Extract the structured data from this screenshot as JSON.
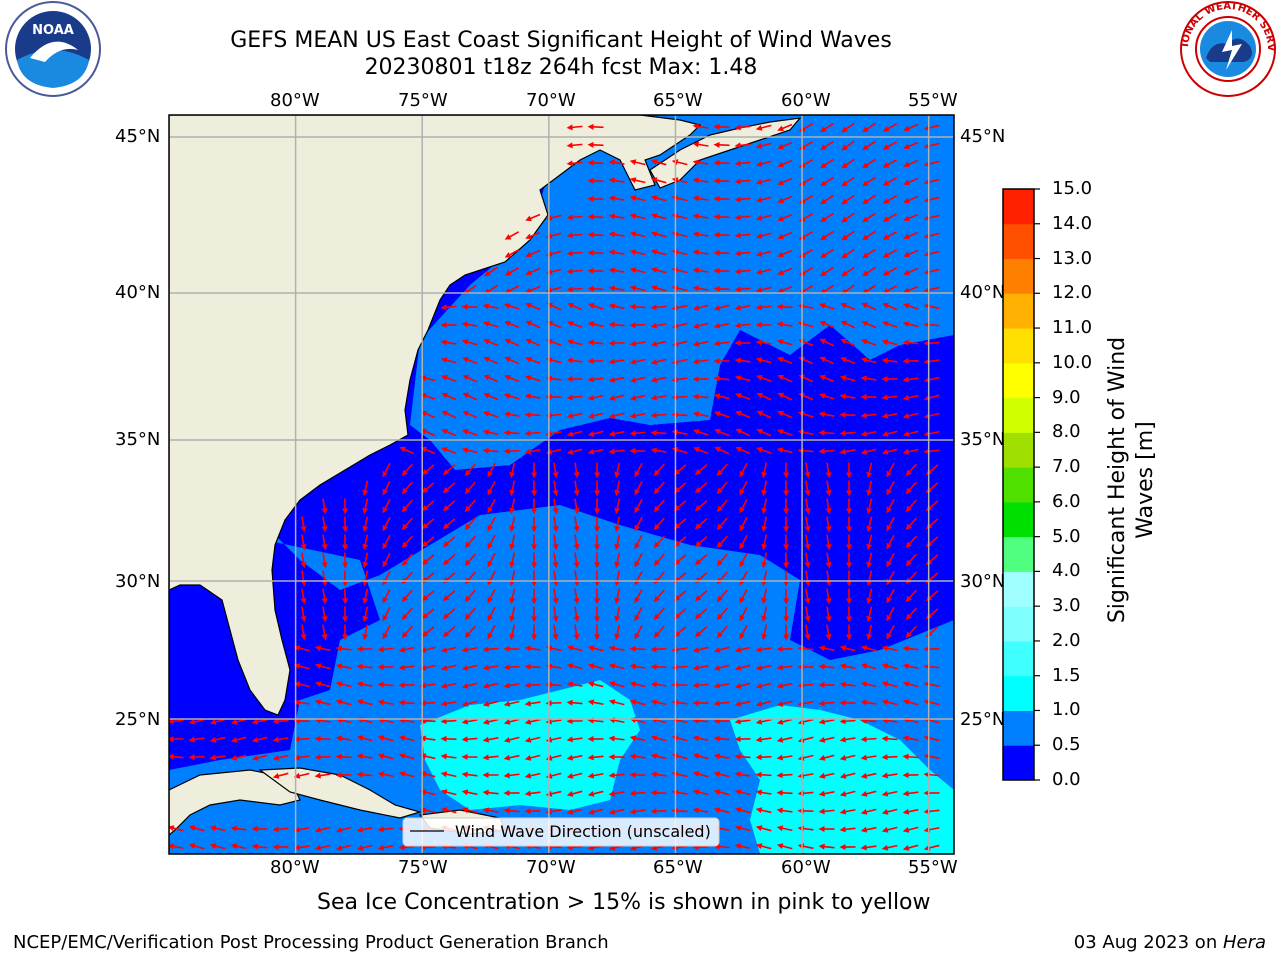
{
  "header": {
    "title_line1": "GEFS MEAN US East Coast Significant Height of Wind Waves",
    "title_line2": "20230801 t18z 264h fcst   Max: 1.48"
  },
  "logos": {
    "left": {
      "icon": "noaa-logo",
      "text": "NOAA"
    },
    "right": {
      "icon": "nws-logo",
      "text": "NATIONAL WEATHER SERVICE"
    }
  },
  "map": {
    "lon_labels": [
      "80°W",
      "75°W",
      "70°W",
      "65°W",
      "60°W",
      "55°W"
    ],
    "lat_labels": [
      "45°N",
      "40°N",
      "35°N",
      "30°N",
      "25°N"
    ],
    "lon_range": [
      -85,
      -54
    ],
    "lat_range": [
      20.5,
      46
    ],
    "legend_label": "Wind Wave Direction (unscaled)",
    "arrow_color": "#ff0000",
    "land_color": "#efeedc",
    "grid_color": "#b0b0b0"
  },
  "colorbar": {
    "label": "Significant Height of Wind Waves [m]",
    "label_line1": "Significant Height of Wind",
    "label_line2": "Waves [m]",
    "ticks": [
      "0.0",
      "0.5",
      "1.0",
      "1.5",
      "2.0",
      "3.0",
      "4.0",
      "5.0",
      "6.0",
      "7.0",
      "8.0",
      "9.0",
      "10.0",
      "11.0",
      "12.0",
      "13.0",
      "14.0",
      "15.0"
    ],
    "colors": [
      "#0000ff",
      "#0080ff",
      "#00ffff",
      "#40ffff",
      "#80ffff",
      "#a0ffff",
      "#50ff80",
      "#00e000",
      "#50e000",
      "#a0e000",
      "#d0ff00",
      "#ffff00",
      "#ffe000",
      "#ffb000",
      "#ff8000",
      "#ff5000",
      "#ff2000",
      "#ff0000"
    ]
  },
  "notes": {
    "sea_ice": "Sea Ice Concentration > 15% is shown in pink to yellow"
  },
  "footer": {
    "left": "NCEP/EMC/Verification Post Processing Product Generation Branch",
    "date": "03 Aug 2023 on ",
    "machine": "Hera"
  }
}
